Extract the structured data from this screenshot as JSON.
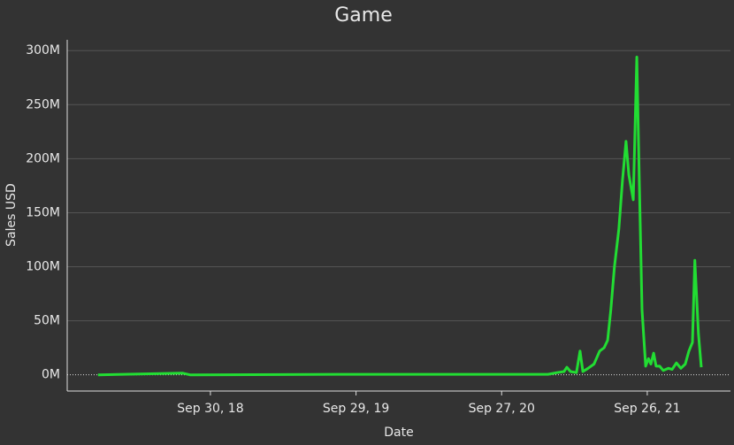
{
  "chart_data": {
    "type": "line",
    "title": "Game",
    "x_label": "Date",
    "y_label": "Sales USD",
    "x": [
      "2017-12-23",
      "2018-07-23",
      "2018-08-10",
      "2019-09-23",
      "2021-01-21",
      "2021-02-12",
      "2021-03-02",
      "2021-03-09",
      "2021-03-18",
      "2021-04-02",
      "2021-04-11",
      "2021-04-18",
      "2021-05-01",
      "2021-05-16",
      "2021-05-30",
      "2021-06-10",
      "2021-06-19",
      "2021-06-27",
      "2021-07-06",
      "2021-07-17",
      "2021-07-26",
      "2021-08-04",
      "2021-08-11",
      "2021-08-22",
      "2021-08-31",
      "2021-09-06",
      "2021-09-13",
      "2021-09-22",
      "2021-09-29",
      "2021-10-05",
      "2021-10-12",
      "2021-10-18",
      "2021-10-27",
      "2021-11-05",
      "2021-11-18",
      "2021-11-27",
      "2021-12-08",
      "2021-12-19",
      "2021-12-30",
      "2022-01-08",
      "2022-01-17",
      "2022-01-23",
      "2022-02-01",
      "2022-02-08"
    ],
    "series": [
      {
        "name": "Sales USD",
        "color": "#22dd33",
        "values": [
          0,
          1500000,
          0,
          500000,
          500000,
          2000000,
          3000000,
          7000000,
          3000000,
          2000000,
          22000000,
          3000000,
          6000000,
          10000000,
          22000000,
          25000000,
          32000000,
          60000000,
          100000000,
          135000000,
          180000000,
          216000000,
          185000000,
          162000000,
          294000000,
          180000000,
          60000000,
          8000000,
          15000000,
          10000000,
          20000000,
          8000000,
          8000000,
          4000000,
          6000000,
          5000000,
          11000000,
          6000000,
          10000000,
          22000000,
          30000000,
          106000000,
          38000000,
          7000000
        ]
      }
    ],
    "xlim": [
      "2017-10-07",
      "2022-04-22"
    ],
    "xticks": [
      {
        "value": "2018-09-30",
        "label": "Sep 30, 18"
      },
      {
        "value": "2019-09-29",
        "label": "Sep 29, 19"
      },
      {
        "value": "2020-09-27",
        "label": "Sep 27, 20"
      },
      {
        "value": "2021-09-26",
        "label": "Sep 26, 21"
      }
    ],
    "ylim": [
      -15000000,
      310000000
    ],
    "yticks": [
      {
        "value": 0,
        "label": "0M"
      },
      {
        "value": 50000000,
        "label": "50M"
      },
      {
        "value": 100000000,
        "label": "100M"
      },
      {
        "value": 150000000,
        "label": "150M"
      },
      {
        "value": 200000000,
        "label": "200M"
      },
      {
        "value": 250000000,
        "label": "250M"
      },
      {
        "value": 300000000,
        "label": "300M"
      }
    ],
    "grid": true
  }
}
